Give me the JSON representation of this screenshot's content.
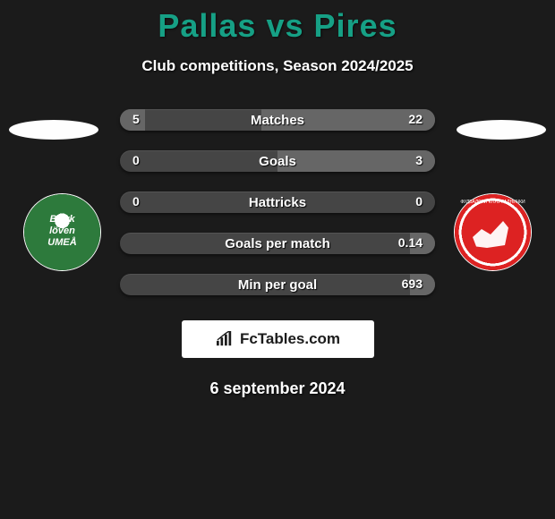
{
  "header": {
    "player_a": "Pallas",
    "vs_text": "vs",
    "player_b": "Pires",
    "subtitle": "Club competitions, Season 2024/2025"
  },
  "colors": {
    "background": "#1b1b1b",
    "title": "#16a085",
    "stat_row_bg": "#454545",
    "stat_bar_fill": "#666666",
    "text": "#ffffff",
    "brand_bg": "#ffffff",
    "brand_text": "#1b1b1b",
    "club_a_primary": "#2d7a3c",
    "club_b_primary": "#d22"
  },
  "stats": {
    "rows": [
      {
        "label": "Matches",
        "left_val": "5",
        "right_val": "22",
        "left_pct": 8,
        "right_pct": 55
      },
      {
        "label": "Goals",
        "left_val": "0",
        "right_val": "3",
        "left_pct": 0,
        "right_pct": 50
      },
      {
        "label": "Hattricks",
        "left_val": "0",
        "right_val": "0",
        "left_pct": 0,
        "right_pct": 0
      },
      {
        "label": "Goals per match",
        "left_val": "",
        "right_val": "0.14",
        "left_pct": 0,
        "right_pct": 8
      },
      {
        "label": "Min per goal",
        "left_val": "",
        "right_val": "693",
        "left_pct": 0,
        "right_pct": 8
      }
    ]
  },
  "clubs": {
    "left": {
      "name": "Björklöven Umeå",
      "logo_semantic": "green-circle-bjorkloven"
    },
    "right": {
      "name": "Radnički",
      "logo_semantic": "red-circle-eagle"
    }
  },
  "brand": {
    "icon_semantic": "bar-chart-icon",
    "text": "FcTables.com"
  },
  "footer": {
    "date_text": "6 september 2024"
  }
}
